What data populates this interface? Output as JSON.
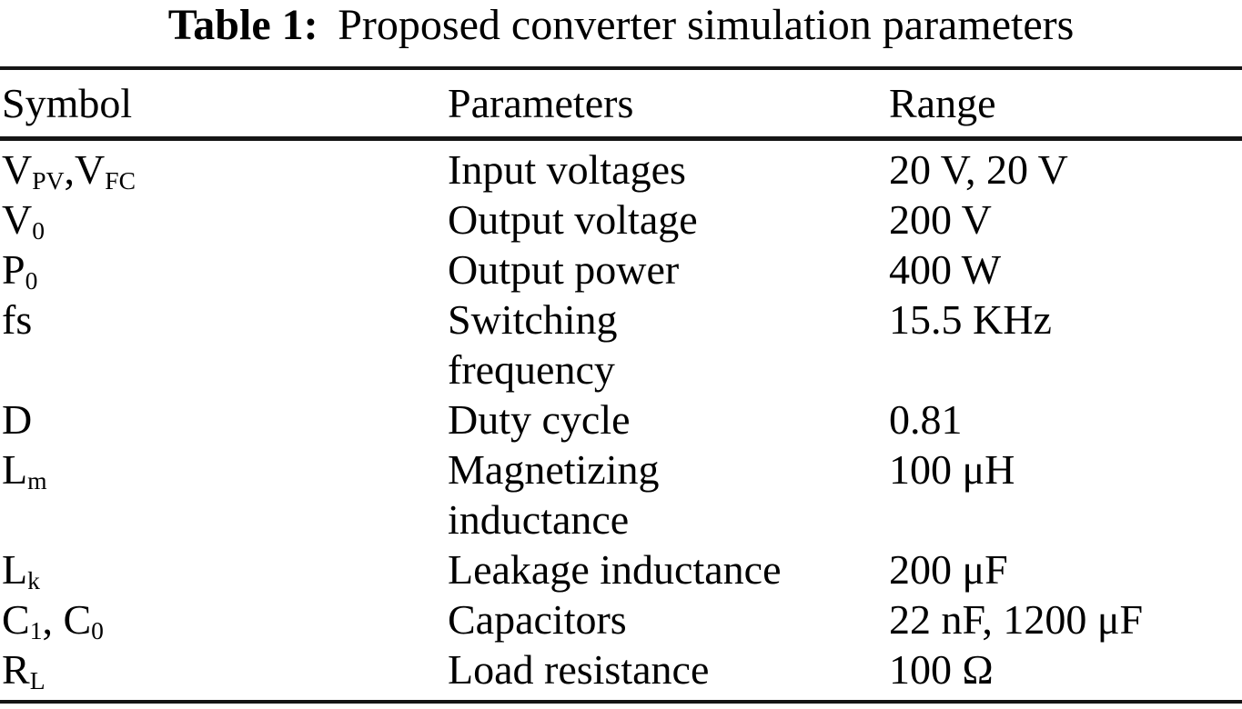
{
  "table": {
    "title": {
      "label": "Table 1:",
      "text": "Proposed converter simulation parameters"
    },
    "columns": [
      "Symbol",
      "Parameters",
      "Range"
    ],
    "rows": [
      {
        "symbol": "V_{PV},V_{FC}",
        "parameter": "Input voltages",
        "range": "20 V, 20 V"
      },
      {
        "symbol": "V_{0}",
        "parameter": "Output voltage",
        "range": "200 V"
      },
      {
        "symbol": "P_{0}",
        "parameter": "Output power",
        "range": "400 W"
      },
      {
        "symbol": "fs",
        "parameter": "Switching\nfrequency",
        "range": "15.5 KHz"
      },
      {
        "symbol": "D",
        "parameter": "Duty cycle",
        "range": "0.81"
      },
      {
        "symbol": "L_{m}",
        "parameter": "Magnetizing\ninductance",
        "range": "100 μH"
      },
      {
        "symbol": "L_{k}",
        "parameter": "Leakage inductance",
        "range": "200 μF"
      },
      {
        "symbol": "C_{1}, C_{0}",
        "parameter": "Capacitors",
        "range": "22 nF, 1200 μF"
      },
      {
        "symbol": "R_{L}",
        "parameter": "Load resistance",
        "range": "100 Ω"
      }
    ]
  },
  "colors": {
    "background": "#ffffff",
    "text": "#000000",
    "rule": "#151515"
  }
}
